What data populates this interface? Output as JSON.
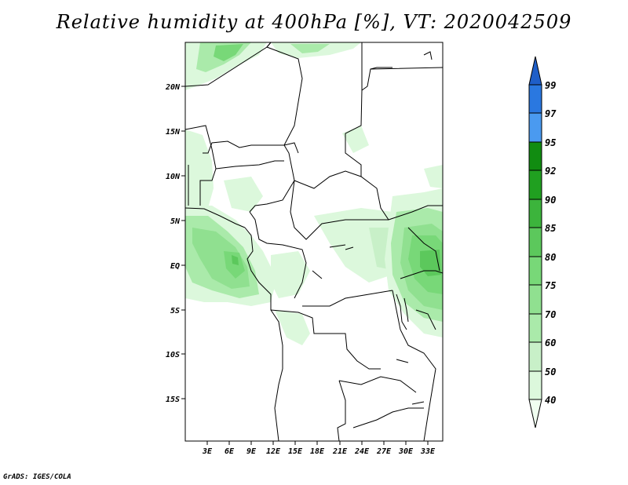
{
  "title": "Relative humidity at 400hPa [%], VT: 2020042509",
  "credit": "GrADS: IGES/COLA",
  "map": {
    "lat_labels": [
      "20N",
      "15N",
      "10N",
      "5N",
      "EQ",
      "5S",
      "10S",
      "15S"
    ],
    "lon_labels": [
      "3E",
      "6E",
      "9E",
      "12E",
      "15E",
      "18E",
      "21E",
      "24E",
      "27E",
      "30E",
      "33E"
    ]
  },
  "colorbar": {
    "levels": [
      "40",
      "50",
      "60",
      "70",
      "75",
      "80",
      "85",
      "90",
      "92",
      "95",
      "97",
      "99"
    ],
    "colors": [
      "#f0fff0",
      "#dcf8dc",
      "#c8f0c8",
      "#aaeaaa",
      "#90e090",
      "#78d878",
      "#5cc85c",
      "#3cb43c",
      "#20a020",
      "#118c11",
      "#4a9af0",
      "#2a78e0",
      "#1e5ec8"
    ]
  }
}
